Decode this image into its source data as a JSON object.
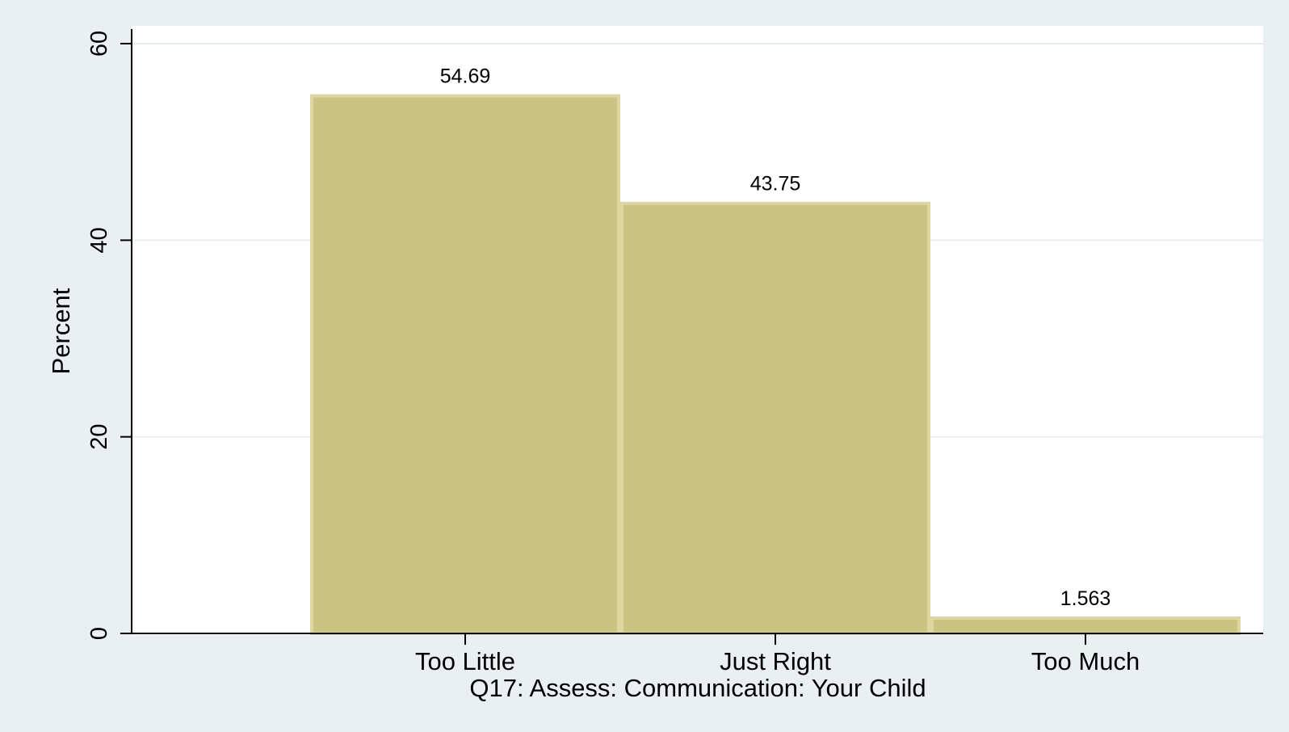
{
  "chart_data": {
    "type": "bar",
    "categories": [
      "Too Little",
      "Just Right",
      "Too Much"
    ],
    "values": [
      54.69,
      43.75,
      1.563
    ],
    "value_labels": [
      "54.69",
      "43.75",
      "1.563"
    ],
    "title": "",
    "xlabel": "Q17: Assess: Communication: Your Child",
    "ylabel": "Percent",
    "ylim": [
      0,
      60
    ],
    "yticks": [
      0,
      20,
      40,
      60
    ],
    "grid": true,
    "legend": "none"
  },
  "colors": {
    "outer_background": "#eaf0f2",
    "plot_background": "#ffffff",
    "bar_fill": "#cbc382",
    "bar_edge": "#ddd6a0",
    "gridline": "#e6eef0",
    "axis": "#000000"
  }
}
